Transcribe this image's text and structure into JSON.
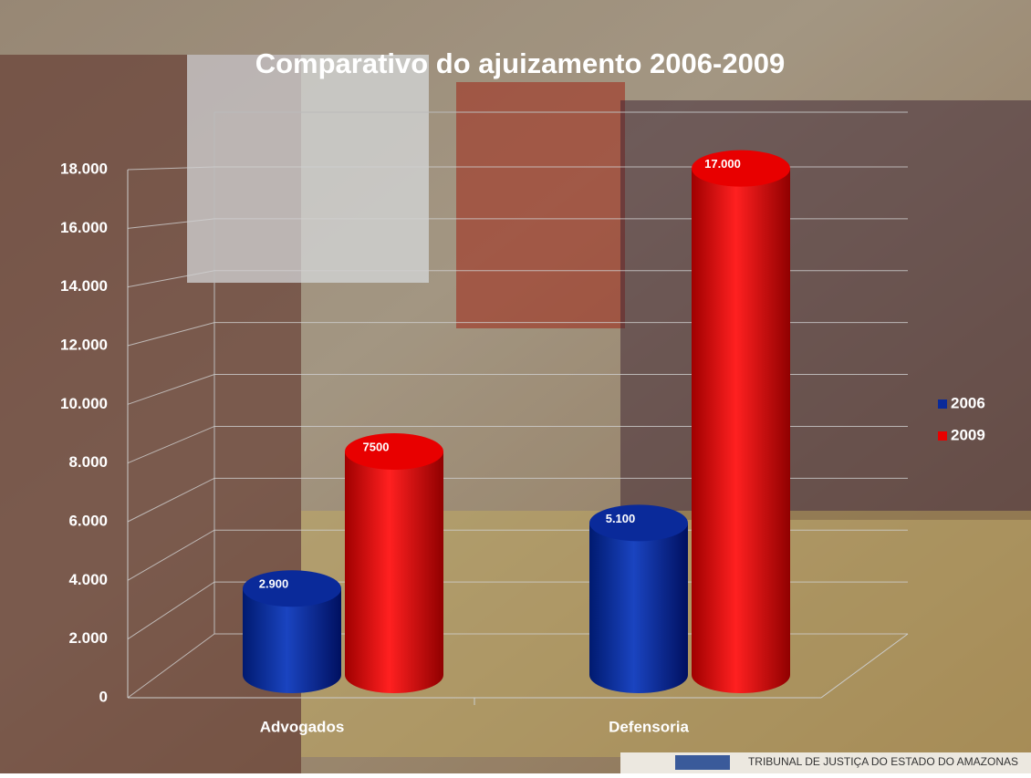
{
  "chart_data": {
    "type": "bar3d",
    "title": "Comparativo do ajuizamento 2006-2009",
    "categories": [
      "Advogados",
      "Defensoria"
    ],
    "series": [
      {
        "name": "2006",
        "color": "#0a2a9a",
        "values": [
          2900,
          5100
        ],
        "value_labels": [
          "2.900",
          "5.100"
        ]
      },
      {
        "name": "2009",
        "color": "#e80000",
        "values": [
          7500,
          17000
        ],
        "value_labels": [
          "7500",
          "17.000"
        ]
      }
    ],
    "ylim": [
      0,
      18000
    ],
    "yticks": [
      0,
      {
        "value": 2000,
        "label": "2.000"
      },
      {
        "value": 4000,
        "label": "4.000"
      },
      {
        "value": 6000,
        "label": "6.000"
      },
      {
        "value": 8000,
        "label": "8.000"
      },
      {
        "value": 10000,
        "label": "10.000"
      },
      {
        "value": 12000,
        "label": "12.000"
      },
      {
        "value": 14000,
        "label": "14.000"
      },
      {
        "value": 16000,
        "label": "16.000"
      },
      {
        "value": 18000,
        "label": "18.000"
      }
    ],
    "grid": true,
    "legend": "right",
    "footer": "TRIBUNAL DE JUSTIÇA DO ESTADO  DO AMAZONAS"
  }
}
